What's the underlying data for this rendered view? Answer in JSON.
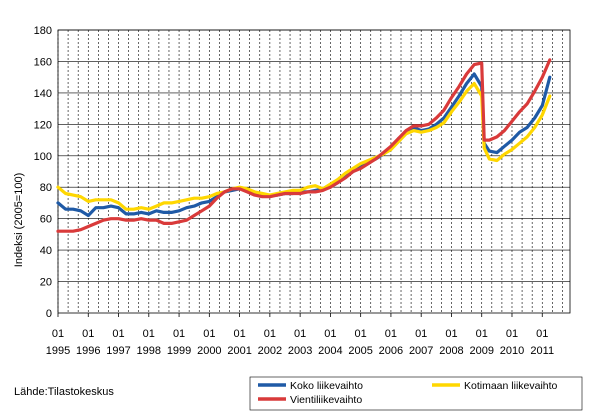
{
  "source_text": "Lähde:Tilastokeskus",
  "chart_data": {
    "type": "line",
    "title": "",
    "xlabel": "",
    "ylabel": "Indeksi (2005=100)",
    "ylim": [
      0,
      180
    ],
    "yticks": [
      0,
      20,
      40,
      60,
      80,
      100,
      120,
      140,
      160,
      180
    ],
    "grid": "vertical dashed, horizontal solid",
    "legend_position": "bottom",
    "x_start": "1995-01",
    "x_step": "month",
    "x_tick_labels": [
      {
        "month": "01",
        "year": "1995"
      },
      {
        "month": "01",
        "year": "1996"
      },
      {
        "month": "01",
        "year": "1997"
      },
      {
        "month": "01",
        "year": "1998"
      },
      {
        "month": "01",
        "year": "1999"
      },
      {
        "month": "01",
        "year": "2000"
      },
      {
        "month": "01",
        "year": "2001"
      },
      {
        "month": "01",
        "year": "2002"
      },
      {
        "month": "01",
        "year": "2003"
      },
      {
        "month": "01",
        "year": "2004"
      },
      {
        "month": "01",
        "year": "2005"
      },
      {
        "month": "01",
        "year": "2006"
      },
      {
        "month": "01",
        "year": "2007"
      },
      {
        "month": "01",
        "year": "2008"
      },
      {
        "month": "01",
        "year": "2009"
      },
      {
        "month": "01",
        "year": "2010"
      },
      {
        "month": "01",
        "year": "2011"
      }
    ],
    "series": [
      {
        "name": "Koko liikevaihto",
        "color": "#1f5aa6",
        "points": [
          [
            "1995-01",
            70
          ],
          [
            "1995-04",
            66
          ],
          [
            "1995-07",
            66
          ],
          [
            "1995-10",
            65
          ],
          [
            "1996-01",
            62
          ],
          [
            "1996-04",
            67
          ],
          [
            "1996-07",
            67
          ],
          [
            "1996-10",
            68
          ],
          [
            "1997-01",
            67
          ],
          [
            "1997-04",
            63
          ],
          [
            "1997-07",
            63
          ],
          [
            "1997-10",
            64
          ],
          [
            "1998-01",
            63
          ],
          [
            "1998-04",
            65
          ],
          [
            "1998-07",
            64
          ],
          [
            "1998-10",
            64
          ],
          [
            "1999-01",
            65
          ],
          [
            "1999-04",
            67
          ],
          [
            "1999-07",
            68
          ],
          [
            "1999-10",
            70
          ],
          [
            "2000-01",
            71
          ],
          [
            "2000-04",
            74
          ],
          [
            "2000-07",
            77
          ],
          [
            "2000-10",
            78
          ],
          [
            "2001-01",
            79
          ],
          [
            "2001-04",
            78
          ],
          [
            "2001-07",
            76
          ],
          [
            "2001-10",
            75
          ],
          [
            "2002-01",
            75
          ],
          [
            "2002-04",
            75
          ],
          [
            "2002-07",
            76
          ],
          [
            "2002-10",
            76
          ],
          [
            "2003-01",
            77
          ],
          [
            "2003-04",
            77
          ],
          [
            "2003-07",
            78
          ],
          [
            "2003-10",
            79
          ],
          [
            "2004-01",
            80
          ],
          [
            "2004-04",
            83
          ],
          [
            "2004-07",
            87
          ],
          [
            "2004-10",
            90
          ],
          [
            "2005-01",
            93
          ],
          [
            "2005-04",
            96
          ],
          [
            "2005-07",
            98
          ],
          [
            "2005-10",
            101
          ],
          [
            "2006-01",
            105
          ],
          [
            "2006-04",
            111
          ],
          [
            "2006-07",
            115
          ],
          [
            "2006-10",
            118
          ],
          [
            "2007-01",
            116
          ],
          [
            "2007-04",
            117
          ],
          [
            "2007-07",
            120
          ],
          [
            "2007-10",
            124
          ],
          [
            "2008-01",
            131
          ],
          [
            "2008-04",
            138
          ],
          [
            "2008-07",
            146
          ],
          [
            "2008-10",
            152
          ],
          [
            "2009-01",
            144
          ],
          [
            "2009-02",
            108
          ],
          [
            "2009-04",
            103
          ],
          [
            "2009-07",
            102
          ],
          [
            "2009-10",
            106
          ],
          [
            "2010-01",
            110
          ],
          [
            "2010-04",
            115
          ],
          [
            "2010-07",
            118
          ],
          [
            "2010-10",
            124
          ],
          [
            "2011-01",
            132
          ],
          [
            "2011-04",
            150
          ]
        ]
      },
      {
        "name": "Kotimaan liikevaihto",
        "color": "#ffd700",
        "points": [
          [
            "1995-01",
            80
          ],
          [
            "1995-04",
            76
          ],
          [
            "1995-07",
            75
          ],
          [
            "1995-10",
            74
          ],
          [
            "1996-01",
            71
          ],
          [
            "1996-04",
            72
          ],
          [
            "1996-07",
            72
          ],
          [
            "1996-10",
            72
          ],
          [
            "1997-01",
            70
          ],
          [
            "1997-04",
            66
          ],
          [
            "1997-07",
            66
          ],
          [
            "1997-10",
            67
          ],
          [
            "1998-01",
            66
          ],
          [
            "1998-04",
            68
          ],
          [
            "1998-07",
            70
          ],
          [
            "1998-10",
            70
          ],
          [
            "1999-01",
            71
          ],
          [
            "1999-04",
            72
          ],
          [
            "1999-07",
            73
          ],
          [
            "1999-10",
            73
          ],
          [
            "2000-01",
            74
          ],
          [
            "2000-04",
            76
          ],
          [
            "2000-07",
            77
          ],
          [
            "2000-10",
            79
          ],
          [
            "2001-01",
            80
          ],
          [
            "2001-04",
            79
          ],
          [
            "2001-07",
            77
          ],
          [
            "2001-10",
            76
          ],
          [
            "2002-01",
            75
          ],
          [
            "2002-04",
            76
          ],
          [
            "2002-07",
            77
          ],
          [
            "2002-10",
            78
          ],
          [
            "2003-01",
            78
          ],
          [
            "2003-04",
            80
          ],
          [
            "2003-07",
            81
          ],
          [
            "2003-10",
            79
          ],
          [
            "2004-01",
            82
          ],
          [
            "2004-04",
            85
          ],
          [
            "2004-07",
            89
          ],
          [
            "2004-10",
            92
          ],
          [
            "2005-01",
            95
          ],
          [
            "2005-04",
            97
          ],
          [
            "2005-07",
            99
          ],
          [
            "2005-10",
            101
          ],
          [
            "2006-01",
            104
          ],
          [
            "2006-04",
            109
          ],
          [
            "2006-07",
            114
          ],
          [
            "2006-10",
            116
          ],
          [
            "2007-01",
            115
          ],
          [
            "2007-04",
            116
          ],
          [
            "2007-07",
            118
          ],
          [
            "2007-10",
            121
          ],
          [
            "2008-01",
            128
          ],
          [
            "2008-04",
            134
          ],
          [
            "2008-07",
            141
          ],
          [
            "2008-10",
            146
          ],
          [
            "2009-01",
            138
          ],
          [
            "2009-02",
            105
          ],
          [
            "2009-04",
            98
          ],
          [
            "2009-07",
            97
          ],
          [
            "2009-10",
            101
          ],
          [
            "2010-01",
            104
          ],
          [
            "2010-04",
            108
          ],
          [
            "2010-07",
            112
          ],
          [
            "2010-10",
            118
          ],
          [
            "2011-01",
            126
          ],
          [
            "2011-04",
            138
          ]
        ]
      },
      {
        "name": "Vientiliikevaihto",
        "color": "#d93a3a",
        "points": [
          [
            "1995-01",
            52
          ],
          [
            "1995-04",
            52
          ],
          [
            "1995-07",
            52
          ],
          [
            "1995-10",
            53
          ],
          [
            "1996-01",
            55
          ],
          [
            "1996-04",
            57
          ],
          [
            "1996-07",
            59
          ],
          [
            "1996-10",
            60
          ],
          [
            "1997-01",
            60
          ],
          [
            "1997-04",
            59
          ],
          [
            "1997-07",
            59
          ],
          [
            "1997-10",
            60
          ],
          [
            "1998-01",
            59
          ],
          [
            "1998-04",
            59
          ],
          [
            "1998-07",
            57
          ],
          [
            "1998-10",
            57
          ],
          [
            "1999-01",
            58
          ],
          [
            "1999-04",
            59
          ],
          [
            "1999-07",
            62
          ],
          [
            "1999-10",
            65
          ],
          [
            "2000-01",
            68
          ],
          [
            "2000-04",
            73
          ],
          [
            "2000-07",
            77
          ],
          [
            "2000-10",
            79
          ],
          [
            "2001-01",
            79
          ],
          [
            "2001-04",
            77
          ],
          [
            "2001-07",
            75
          ],
          [
            "2001-10",
            74
          ],
          [
            "2002-01",
            74
          ],
          [
            "2002-04",
            75
          ],
          [
            "2002-07",
            76
          ],
          [
            "2002-10",
            76
          ],
          [
            "2003-01",
            76
          ],
          [
            "2003-04",
            77
          ],
          [
            "2003-07",
            77
          ],
          [
            "2003-10",
            78
          ],
          [
            "2004-01",
            80
          ],
          [
            "2004-04",
            83
          ],
          [
            "2004-07",
            86
          ],
          [
            "2004-10",
            90
          ],
          [
            "2005-01",
            92
          ],
          [
            "2005-04",
            95
          ],
          [
            "2005-07",
            98
          ],
          [
            "2005-10",
            102
          ],
          [
            "2006-01",
            106
          ],
          [
            "2006-04",
            111
          ],
          [
            "2006-07",
            116
          ],
          [
            "2006-10",
            119
          ],
          [
            "2007-01",
            119
          ],
          [
            "2007-04",
            120
          ],
          [
            "2007-07",
            124
          ],
          [
            "2007-10",
            129
          ],
          [
            "2008-01",
            137
          ],
          [
            "2008-04",
            144
          ],
          [
            "2008-07",
            152
          ],
          [
            "2008-10",
            158
          ],
          [
            "2009-01",
            159
          ],
          [
            "2009-02",
            110
          ],
          [
            "2009-04",
            110
          ],
          [
            "2009-07",
            112
          ],
          [
            "2009-10",
            116
          ],
          [
            "2010-01",
            122
          ],
          [
            "2010-04",
            128
          ],
          [
            "2010-07",
            133
          ],
          [
            "2010-10",
            141
          ],
          [
            "2011-01",
            150
          ],
          [
            "2011-04",
            161
          ]
        ]
      }
    ]
  }
}
